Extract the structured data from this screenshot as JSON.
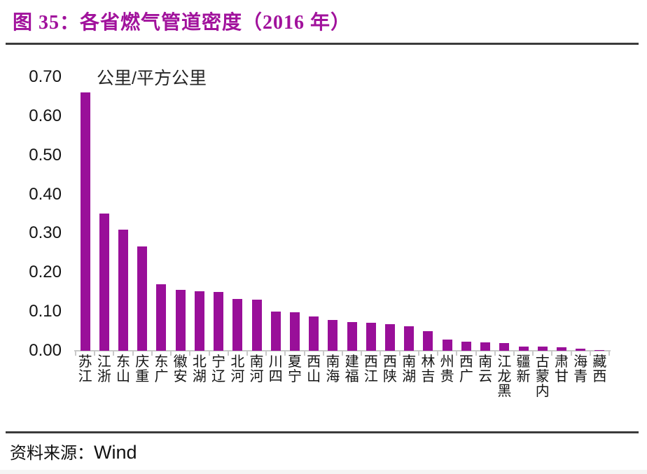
{
  "figure": {
    "title": "图 35：各省燃气管道密度（2016 年）",
    "source_label": "资料来源：",
    "source_value": "Wind"
  },
  "chart_data": {
    "type": "bar",
    "title": "图 35：各省燃气管道密度（2016 年）",
    "unit_label": "公里/平方公里",
    "xlabel": "",
    "ylabel": "公里/平方公里",
    "ylim": [
      0,
      0.7
    ],
    "y_ticks": [
      "0.70",
      "0.60",
      "0.50",
      "0.40",
      "0.30",
      "0.20",
      "0.10",
      "0.00"
    ],
    "grid": "off",
    "legend": "none",
    "x_label_orientation": "vertical-bottom-to-top",
    "bar_color": "#990f99",
    "title_color": "#a1129c",
    "axis_color": "#c9c9c9",
    "categories": [
      "江苏",
      "浙江",
      "山东",
      "重庆",
      "广东",
      "安徽",
      "湖北",
      "辽宁",
      "河北",
      "河南",
      "四川",
      "宁夏",
      "山西",
      "海南",
      "福建",
      "江西",
      "陕西",
      "湖南",
      "吉林",
      "贵州",
      "广西",
      "云南",
      "黑龙江",
      "新疆",
      "内蒙古",
      "甘肃",
      "青海",
      "西藏"
    ],
    "values": [
      0.66,
      0.35,
      0.31,
      0.267,
      0.17,
      0.155,
      0.152,
      0.15,
      0.133,
      0.13,
      0.1,
      0.098,
      0.088,
      0.078,
      0.074,
      0.071,
      0.068,
      0.062,
      0.05,
      0.029,
      0.023,
      0.022,
      0.019,
      0.01,
      0.01,
      0.009,
      0.005,
      0.002
    ]
  }
}
